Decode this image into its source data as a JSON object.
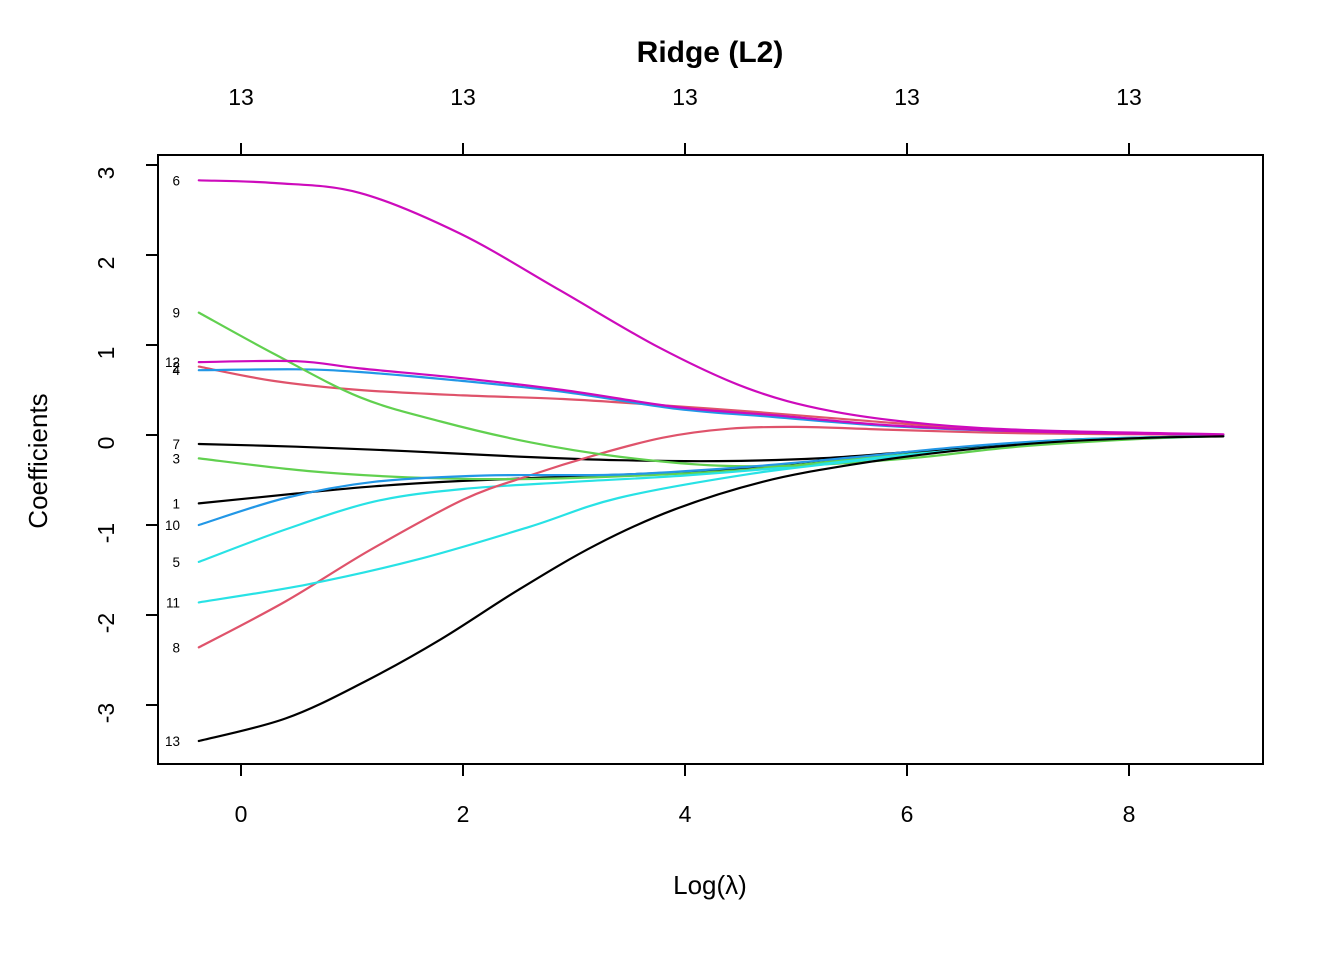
{
  "chart_data": {
    "type": "line",
    "title": "Ridge (L2)",
    "xlabel": "Log(λ)",
    "ylabel": "Coefficients",
    "xlim": [
      -0.75,
      9.2
    ],
    "ylim": [
      -3.67,
      3.11
    ],
    "x_ticks": [
      0,
      2,
      4,
      6,
      8
    ],
    "y_ticks": [
      3,
      2,
      1,
      0,
      -1,
      -2,
      -3
    ],
    "top_axis": {
      "tick_x": [
        0,
        2,
        4,
        6,
        8
      ],
      "labels": [
        "13",
        "13",
        "13",
        "13",
        "13"
      ]
    },
    "grid": false,
    "legend": "none",
    "line_width": 2.2,
    "axis_color": "#000000",
    "background": "#ffffff",
    "palette": {
      "black": "#000000",
      "red": "#DF536B",
      "green": "#61D04F",
      "blue": "#2297E6",
      "cyan": "#28E2E5",
      "magenta": "#CD0BBC"
    },
    "series": [
      {
        "label": "1",
        "color": "black",
        "points": [
          [
            -0.38,
            -0.76
          ],
          [
            0.5,
            -0.65
          ],
          [
            1.2,
            -0.57
          ],
          [
            2,
            -0.51
          ],
          [
            3,
            -0.46
          ],
          [
            4,
            -0.41
          ],
          [
            5,
            -0.33
          ],
          [
            6,
            -0.21
          ],
          [
            7,
            -0.1
          ],
          [
            8,
            -0.04
          ],
          [
            8.85,
            -0.01
          ]
        ]
      },
      {
        "label": "2",
        "color": "red",
        "points": [
          [
            -0.38,
            0.76
          ],
          [
            0.3,
            0.6
          ],
          [
            1.07,
            0.5
          ],
          [
            2,
            0.44
          ],
          [
            2.9,
            0.4
          ],
          [
            3.8,
            0.33
          ],
          [
            4.6,
            0.26
          ],
          [
            5.5,
            0.17
          ],
          [
            6.5,
            0.08
          ],
          [
            7.5,
            0.03
          ],
          [
            8.85,
            0.005
          ]
        ]
      },
      {
        "label": "3",
        "color": "green",
        "points": [
          [
            -0.38,
            -0.26
          ],
          [
            0.6,
            -0.4
          ],
          [
            1.5,
            -0.47
          ],
          [
            2.5,
            -0.49
          ],
          [
            3.4,
            -0.46
          ],
          [
            4.5,
            -0.39
          ],
          [
            5.5,
            -0.27
          ],
          [
            6.5,
            -0.14
          ],
          [
            7.5,
            -0.05
          ],
          [
            8.85,
            -0.01
          ]
        ]
      },
      {
        "label": "4",
        "color": "blue",
        "points": [
          [
            -0.38,
            0.72
          ],
          [
            0.5,
            0.73
          ],
          [
            1.07,
            0.7
          ],
          [
            2,
            0.6
          ],
          [
            2.9,
            0.48
          ],
          [
            3.93,
            0.29
          ],
          [
            4.8,
            0.2
          ],
          [
            5.7,
            0.11
          ],
          [
            6.7,
            0.05
          ],
          [
            7.7,
            0.02
          ],
          [
            8.85,
            0.004
          ]
        ]
      },
      {
        "label": "5",
        "color": "cyan",
        "points": [
          [
            -0.38,
            -1.41
          ],
          [
            0.4,
            -1.05
          ],
          [
            1.2,
            -0.74
          ],
          [
            2,
            -0.6
          ],
          [
            3,
            -0.52
          ],
          [
            4,
            -0.45
          ],
          [
            5,
            -0.35
          ],
          [
            6,
            -0.22
          ],
          [
            7,
            -0.11
          ],
          [
            8,
            -0.04
          ],
          [
            8.85,
            -0.012
          ]
        ]
      },
      {
        "label": "6",
        "color": "magenta",
        "points": [
          [
            -0.38,
            2.83
          ],
          [
            0.3,
            2.8
          ],
          [
            1.07,
            2.69
          ],
          [
            1.97,
            2.24
          ],
          [
            2.87,
            1.61
          ],
          [
            3.77,
            0.97
          ],
          [
            4.56,
            0.52
          ],
          [
            5.3,
            0.27
          ],
          [
            6.2,
            0.12
          ],
          [
            7.2,
            0.05
          ],
          [
            8.85,
            0.008
          ]
        ]
      },
      {
        "label": "7",
        "color": "black",
        "points": [
          [
            -0.38,
            -0.1
          ],
          [
            0.5,
            -0.13
          ],
          [
            1.5,
            -0.18
          ],
          [
            2.5,
            -0.24
          ],
          [
            3.4,
            -0.28
          ],
          [
            4.3,
            -0.29
          ],
          [
            5.2,
            -0.26
          ],
          [
            6,
            -0.19
          ],
          [
            7,
            -0.1
          ],
          [
            8,
            -0.035
          ],
          [
            8.85,
            -0.01
          ]
        ]
      },
      {
        "label": "8",
        "color": "red",
        "points": [
          [
            -0.38,
            -2.36
          ],
          [
            0.4,
            -1.85
          ],
          [
            1.16,
            -1.28
          ],
          [
            2,
            -0.72
          ],
          [
            2.6,
            -0.45
          ],
          [
            3.2,
            -0.22
          ],
          [
            3.8,
            -0.03
          ],
          [
            4.4,
            0.07
          ],
          [
            5,
            0.09
          ],
          [
            5.8,
            0.06
          ],
          [
            6.8,
            0.025
          ],
          [
            7.8,
            0.01
          ],
          [
            8.85,
            0.003
          ]
        ]
      },
      {
        "label": "9",
        "color": "green",
        "points": [
          [
            -0.38,
            1.36
          ],
          [
            0.3,
            0.9
          ],
          [
            1.07,
            0.42
          ],
          [
            1.8,
            0.15
          ],
          [
            2.6,
            -0.08
          ],
          [
            3.4,
            -0.24
          ],
          [
            4.3,
            -0.34
          ],
          [
            5.2,
            -0.33
          ],
          [
            6.1,
            -0.25
          ],
          [
            7,
            -0.13
          ],
          [
            8,
            -0.05
          ],
          [
            8.85,
            -0.012
          ]
        ]
      },
      {
        "label": "10",
        "color": "blue",
        "points": [
          [
            -0.38,
            -1.0
          ],
          [
            0.4,
            -0.7
          ],
          [
            1.2,
            -0.52
          ],
          [
            2.2,
            -0.45
          ],
          [
            3.4,
            -0.44
          ],
          [
            4.5,
            -0.36
          ],
          [
            5.5,
            -0.25
          ],
          [
            6.5,
            -0.13
          ],
          [
            7.5,
            -0.05
          ],
          [
            8.85,
            -0.01
          ]
        ]
      },
      {
        "label": "11",
        "color": "cyan",
        "points": [
          [
            -0.38,
            -1.86
          ],
          [
            0.6,
            -1.66
          ],
          [
            1.6,
            -1.38
          ],
          [
            2.6,
            -1.02
          ],
          [
            3.4,
            -0.7
          ],
          [
            4.6,
            -0.43
          ],
          [
            5.6,
            -0.28
          ],
          [
            6.6,
            -0.15
          ],
          [
            7.6,
            -0.055
          ],
          [
            8.85,
            -0.01
          ]
        ]
      },
      {
        "label": "12",
        "color": "magenta",
        "points": [
          [
            -0.38,
            0.81
          ],
          [
            0.5,
            0.82
          ],
          [
            1.07,
            0.74
          ],
          [
            2,
            0.63
          ],
          [
            2.9,
            0.5
          ],
          [
            3.93,
            0.31
          ],
          [
            4.8,
            0.22
          ],
          [
            5.7,
            0.12
          ],
          [
            6.7,
            0.055
          ],
          [
            7.7,
            0.022
          ],
          [
            8.85,
            0.005
          ]
        ]
      },
      {
        "label": "13",
        "color": "black",
        "points": [
          [
            -0.38,
            -3.4
          ],
          [
            0.4,
            -3.15
          ],
          [
            1.1,
            -2.75
          ],
          [
            1.8,
            -2.27
          ],
          [
            2.5,
            -1.72
          ],
          [
            3.2,
            -1.22
          ],
          [
            3.9,
            -0.83
          ],
          [
            4.7,
            -0.52
          ],
          [
            5.5,
            -0.33
          ],
          [
            6.4,
            -0.18
          ],
          [
            7.3,
            -0.08
          ],
          [
            8.2,
            -0.03
          ],
          [
            8.85,
            -0.015
          ]
        ]
      }
    ]
  }
}
